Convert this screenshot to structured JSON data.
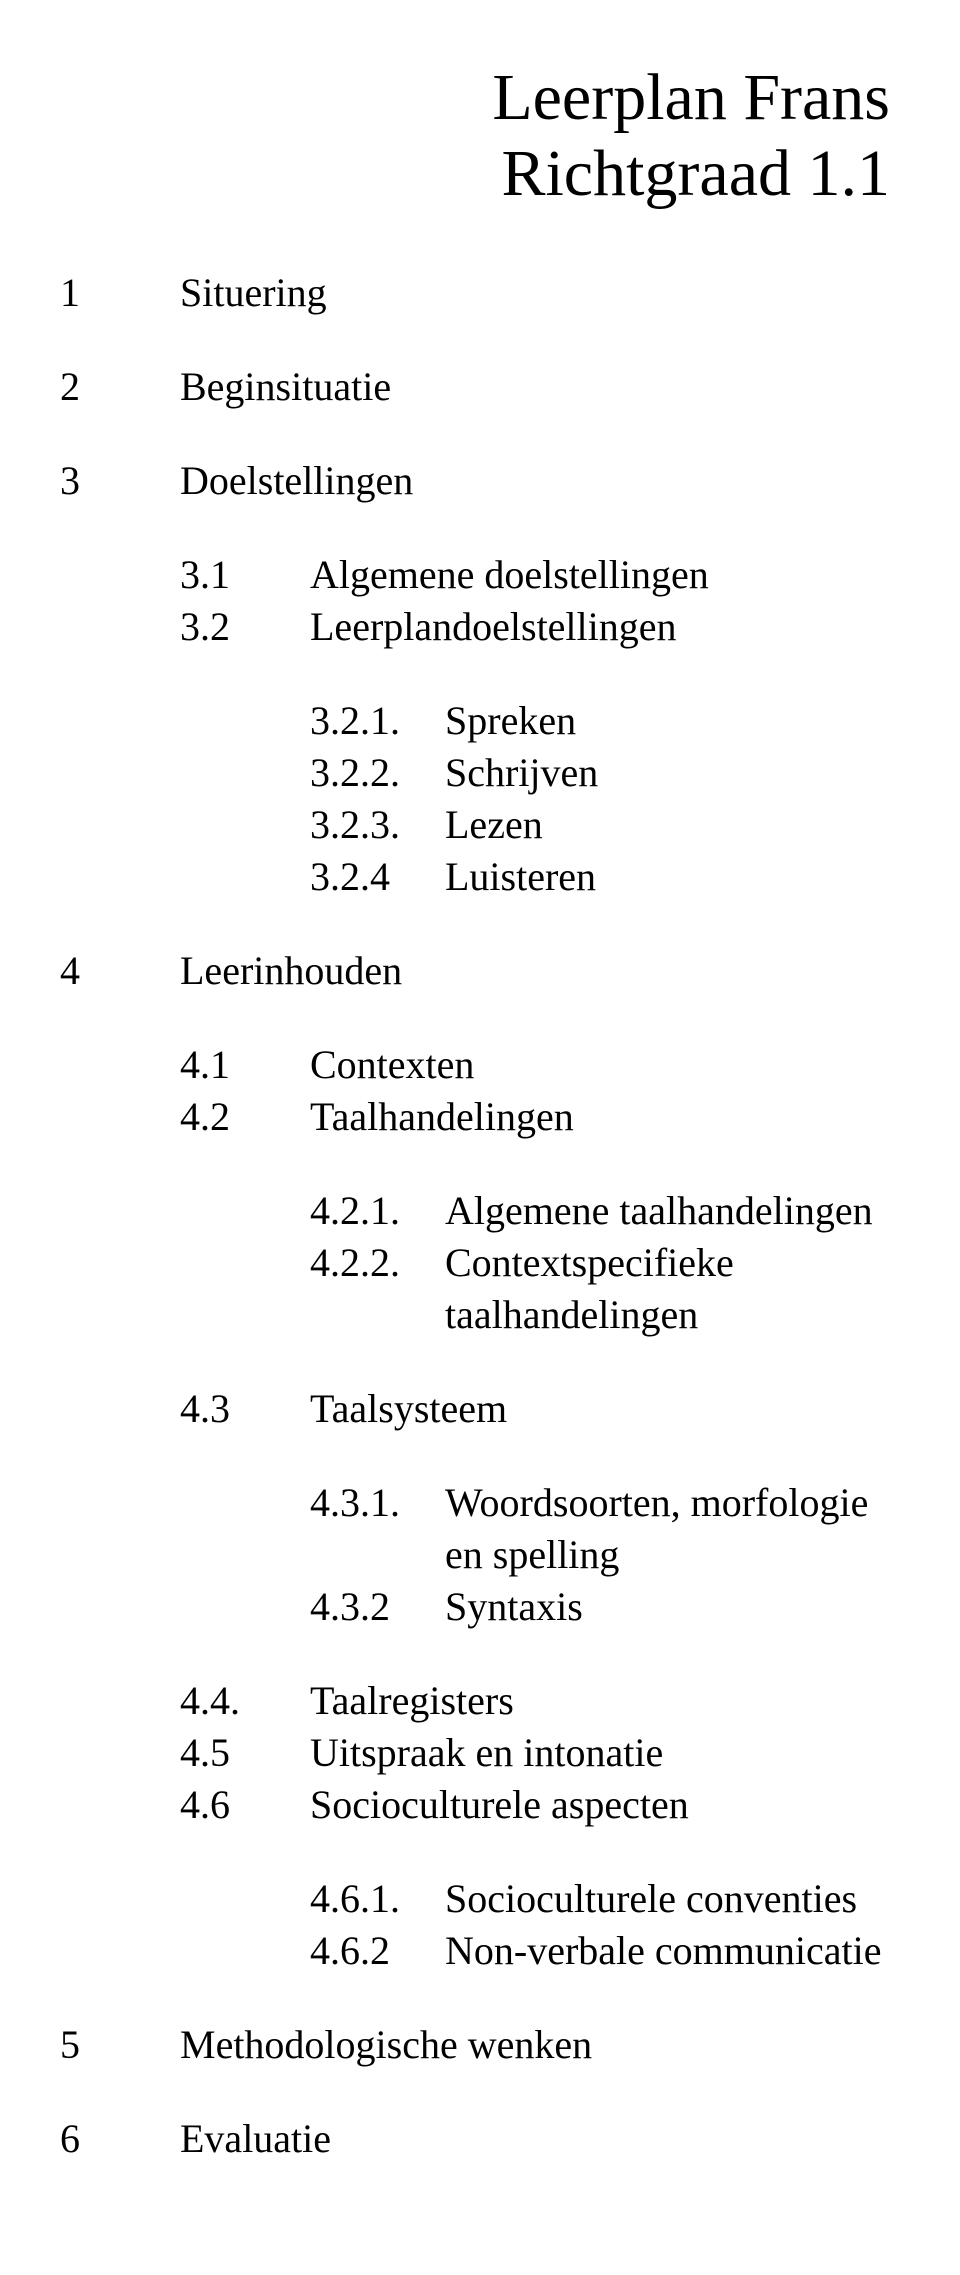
{
  "title": {
    "line1": "Leerplan Frans",
    "line2": "Richtgraad 1.1"
  },
  "toc": {
    "s1": {
      "num": "1",
      "label": "Situering"
    },
    "s2": {
      "num": "2",
      "label": "Beginsituatie"
    },
    "s3": {
      "num": "3",
      "label": "Doelstellingen"
    },
    "s3_1": {
      "num": "3.1",
      "label": "Algemene doelstellingen"
    },
    "s3_2": {
      "num": "3.2",
      "label": "Leerplandoelstellingen"
    },
    "s3_2_1": {
      "num": "3.2.1.",
      "label": "Spreken"
    },
    "s3_2_2": {
      "num": "3.2.2.",
      "label": "Schrijven"
    },
    "s3_2_3": {
      "num": "3.2.3.",
      "label": "Lezen"
    },
    "s3_2_4": {
      "num": "3.2.4",
      "label": "Luisteren"
    },
    "s4": {
      "num": "4",
      "label": "Leerinhouden"
    },
    "s4_1": {
      "num": "4.1",
      "label": "Contexten"
    },
    "s4_2": {
      "num": "4.2",
      "label": "Taalhandelingen"
    },
    "s4_2_1": {
      "num": "4.2.1.",
      "label": "Algemene taalhandelingen"
    },
    "s4_2_2": {
      "num": "4.2.2.",
      "label": "Contextspecifieke taalhandelingen"
    },
    "s4_3": {
      "num": "4.3",
      "label": "Taalsysteem"
    },
    "s4_3_1": {
      "num": "4.3.1.",
      "label": "Woordsoorten, morfologie en spelling"
    },
    "s4_3_2": {
      "num": "4.3.2",
      "label": "Syntaxis"
    },
    "s4_4": {
      "num": "4.4.",
      "label": "Taalregisters"
    },
    "s4_5": {
      "num": "4.5",
      "label": "Uitspraak en intonatie"
    },
    "s4_6": {
      "num": "4.6",
      "label": "Socioculturele aspecten"
    },
    "s4_6_1": {
      "num": "4.6.1.",
      "label": "Socioculturele conventies"
    },
    "s4_6_2": {
      "num": "4.6.2",
      "label": "Non-verbale communicatie"
    },
    "s5": {
      "num": "5",
      "label": "Methodologische wenken"
    },
    "s6": {
      "num": "6",
      "label": "Evaluatie"
    }
  }
}
